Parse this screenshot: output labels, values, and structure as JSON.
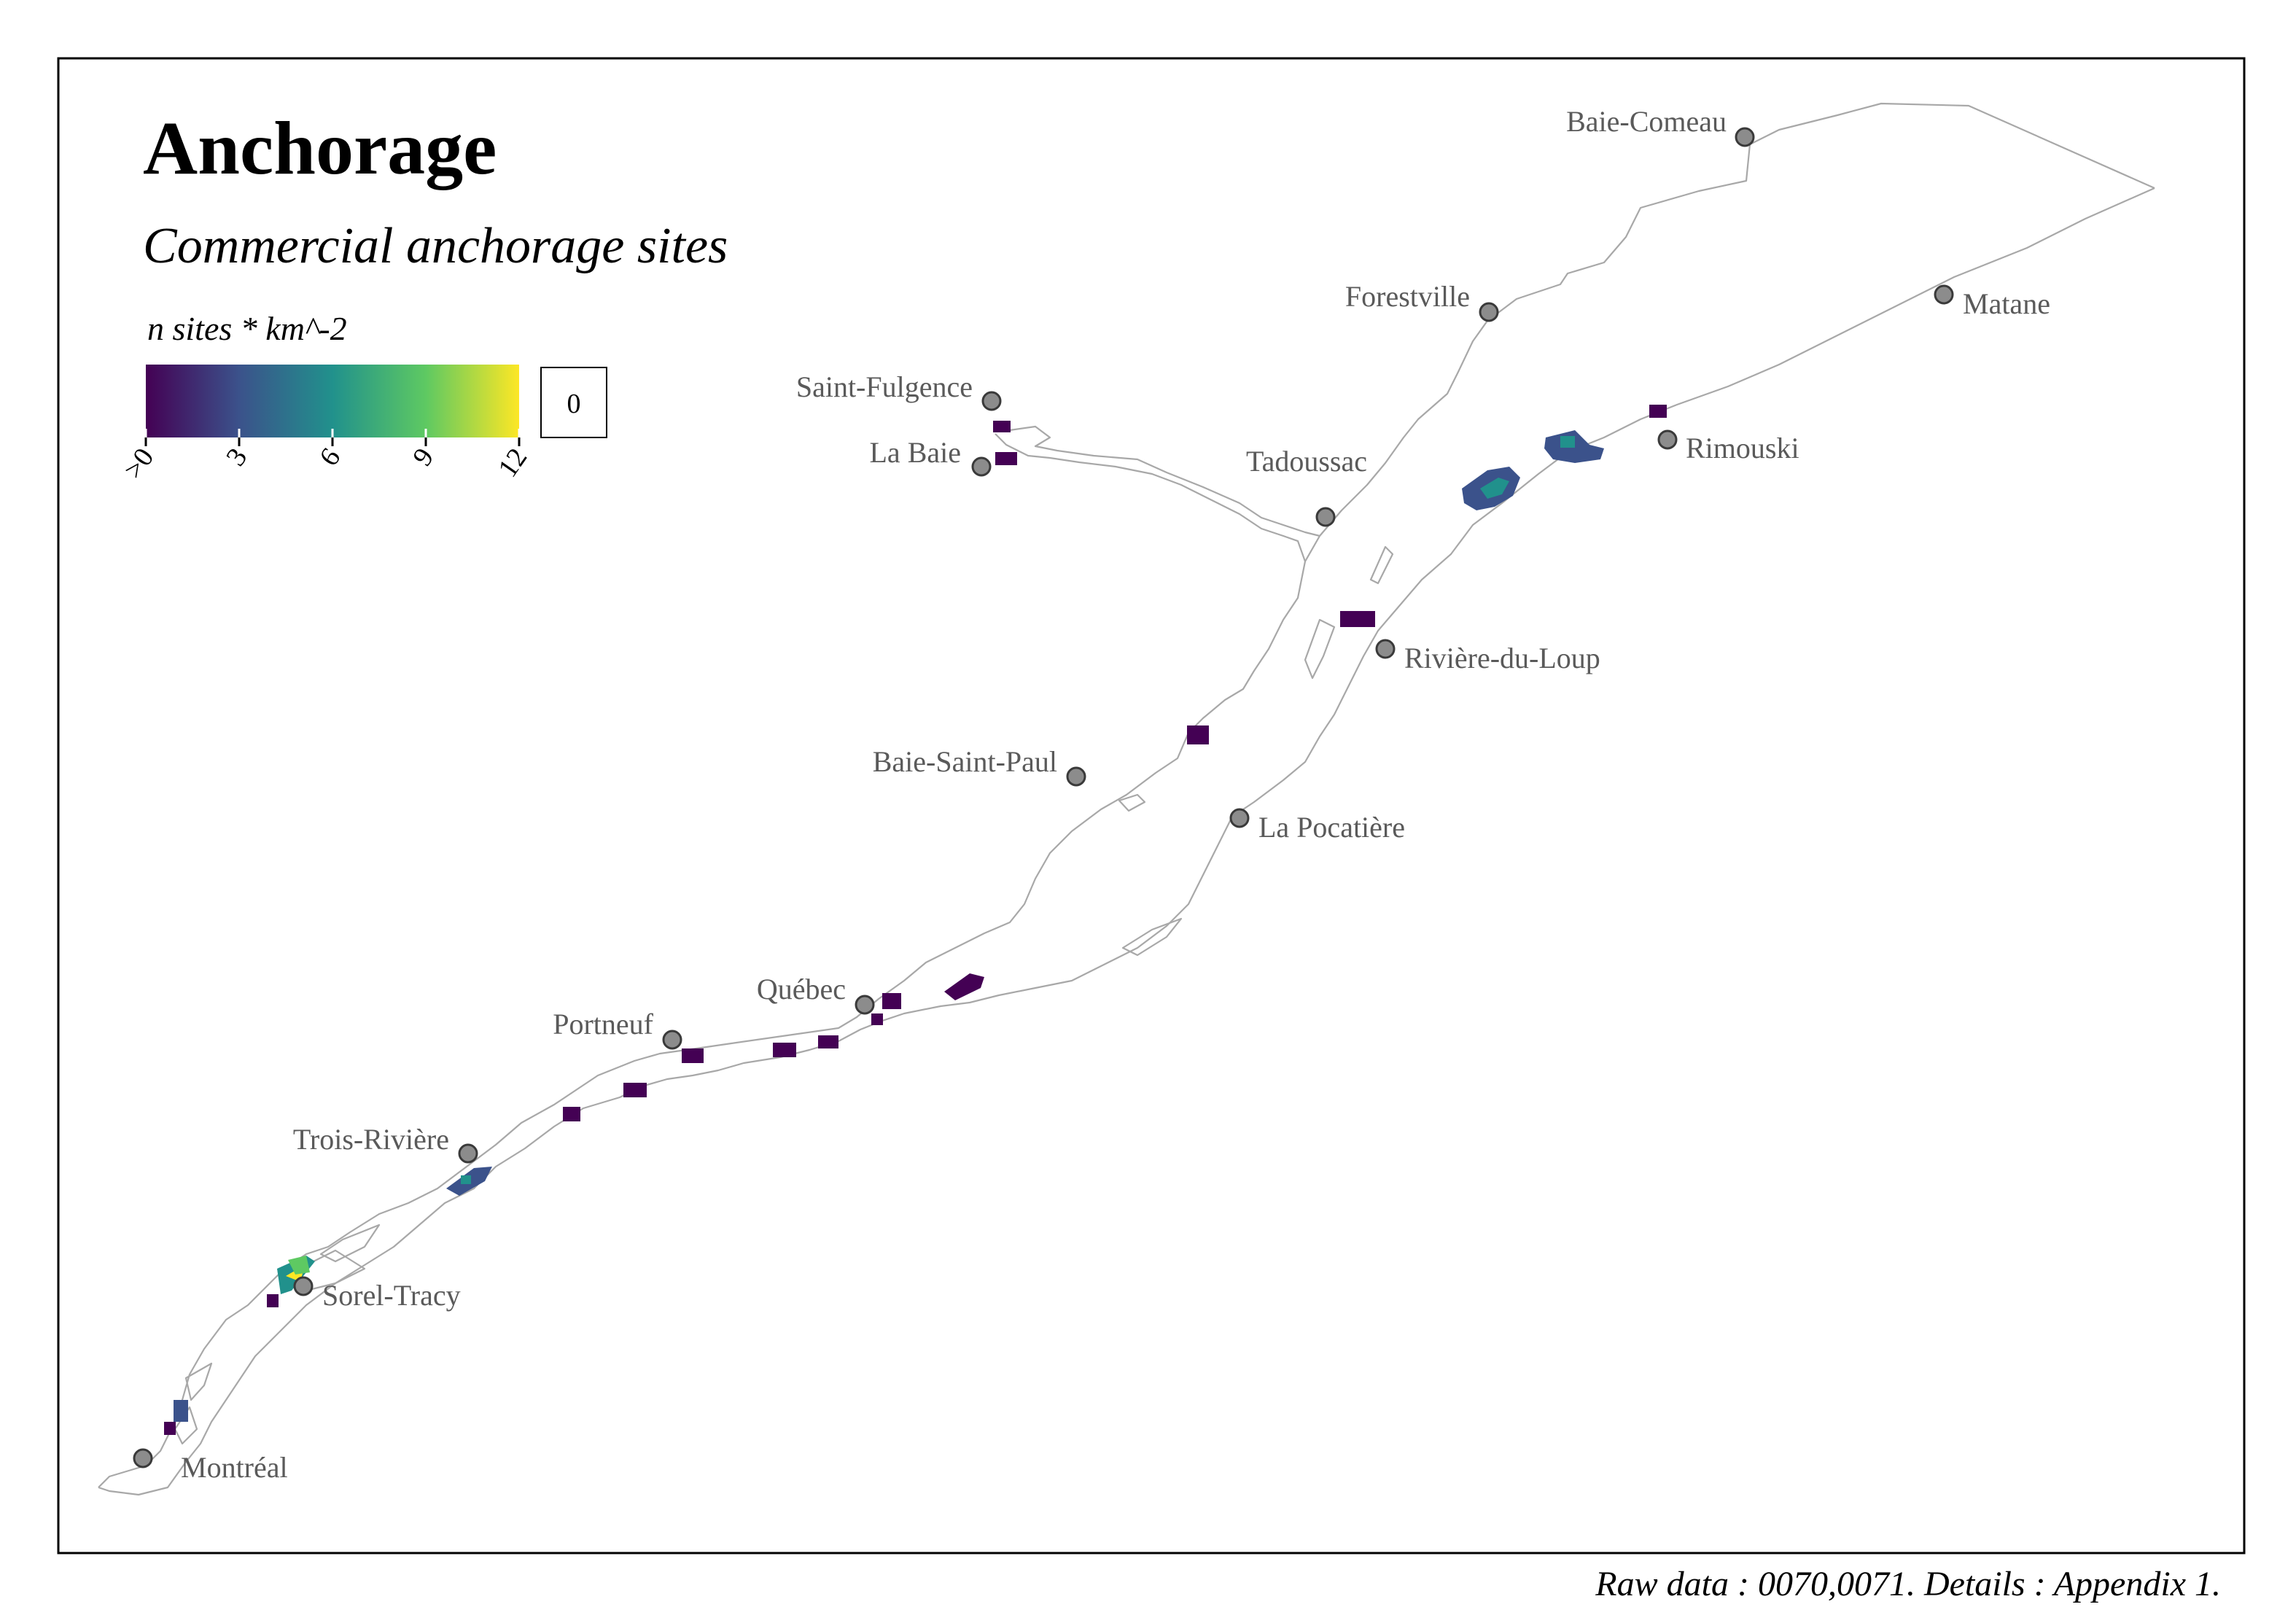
{
  "title": "Anchorage",
  "subtitle": "Commercial anchorage sites",
  "caption": "Raw data : 0070,0071. Details : Appendix 1.",
  "legend": {
    "title": "n sites * km^-2",
    "ticks": [
      ">0",
      "3",
      "6",
      "9",
      "12"
    ],
    "na_label": "0",
    "colors": [
      "#440154",
      "#3b528b",
      "#21918c",
      "#5ec962",
      "#fde725"
    ]
  },
  "colors": {
    "coastline": "#a8a8a8",
    "city_dot": "#8c8c8c",
    "city_label": "#5a5a5a"
  },
  "cities": [
    {
      "name": "Baie-Comeau"
    },
    {
      "name": "Forestville"
    },
    {
      "name": "Matane"
    },
    {
      "name": "Saint-Fulgence"
    },
    {
      "name": "La Baie"
    },
    {
      "name": "Tadoussac"
    },
    {
      "name": "Rimouski"
    },
    {
      "name": "Rivière-du-Loup"
    },
    {
      "name": "Baie-Saint-Paul"
    },
    {
      "name": "La Pocatière"
    },
    {
      "name": "Québec"
    },
    {
      "name": "Portneuf"
    },
    {
      "name": "Trois-Rivière"
    },
    {
      "name": "Sorel-Tracy"
    },
    {
      "name": "Montréal"
    }
  ]
}
